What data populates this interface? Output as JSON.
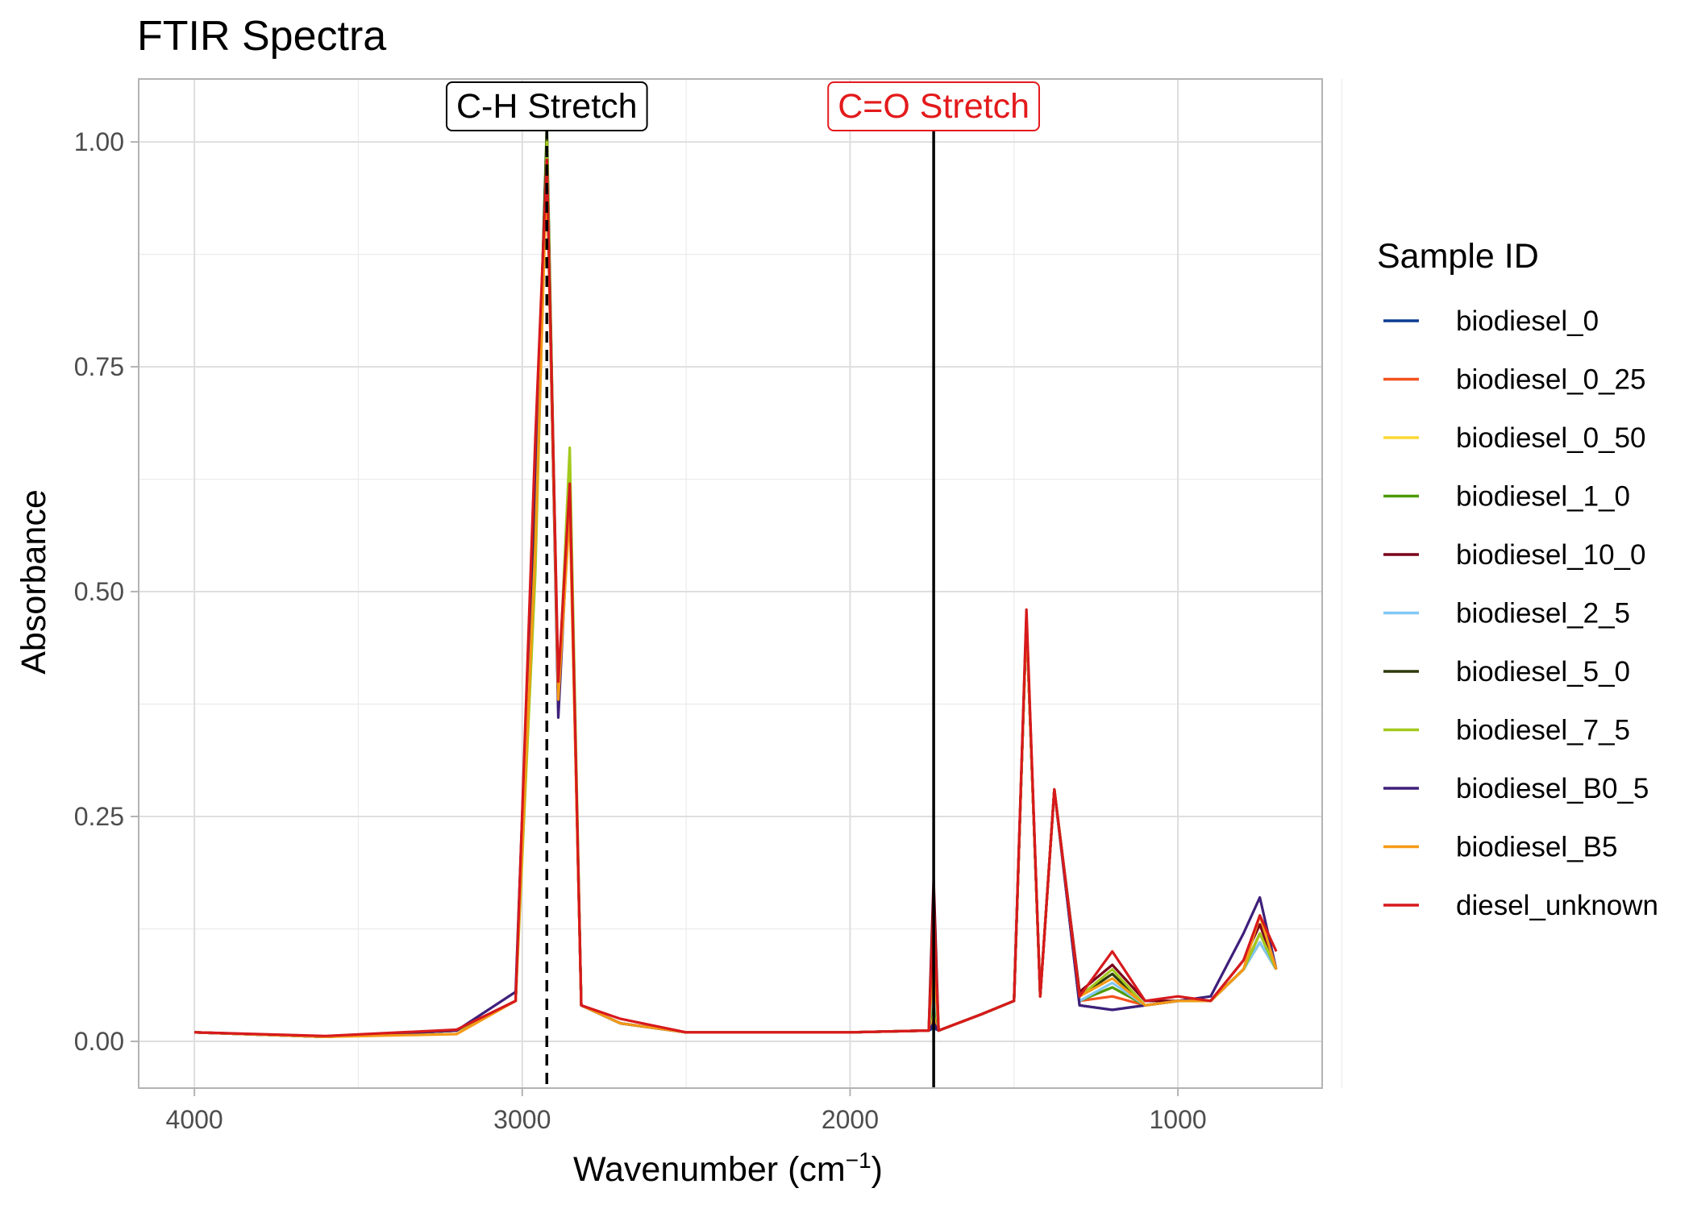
{
  "chart_data": {
    "type": "line",
    "title": "FTIR Spectra",
    "xlabel_base": "Wavenumber (cm",
    "xlabel_sup": "−1",
    "xlabel_end": ")",
    "ylabel": "Absorbance",
    "xlim": [
      4170,
      560
    ],
    "ylim": [
      -0.052,
      1.07
    ],
    "x_reversed": true,
    "x_ticks": [
      4000,
      3000,
      2000,
      1000
    ],
    "x_tick_labels": [
      "4000",
      "3000",
      "2000",
      "1000"
    ],
    "y_ticks": [
      0,
      0.25,
      0.5,
      0.75,
      1.0
    ],
    "y_tick_labels": [
      "0.00",
      "0.25",
      "0.50",
      "0.75",
      "1.00"
    ],
    "grid": true,
    "legend_position": "right",
    "legend_title": "Sample ID",
    "annotations": [
      {
        "label": "C-H Stretch",
        "x": 2925,
        "linetype": "dashed",
        "color": "#000000"
      },
      {
        "label": "C=O Stretch",
        "x": 1745,
        "linetype": "solid",
        "color": "#000000",
        "text_color": "#e31a1c"
      }
    ],
    "series": [
      {
        "name": "biodiesel_0",
        "color": "#0b3d91",
        "x": [
          4000,
          3600,
          3200,
          3020,
          2960,
          2925,
          2890,
          2855,
          2820,
          2700,
          2500,
          2000,
          1760,
          1745,
          1730,
          1600,
          1500,
          1462,
          1420,
          1377,
          1300,
          1200,
          1100,
          1000,
          900,
          800,
          750,
          700
        ],
        "y": [
          0.01,
          0.005,
          0.012,
          0.045,
          0.63,
          1.0,
          0.37,
          0.61,
          0.04,
          0.02,
          0.01,
          0.01,
          0.012,
          0.015,
          0.012,
          0.03,
          0.045,
          0.47,
          0.05,
          0.28,
          0.04,
          0.035,
          0.04,
          0.045,
          0.045,
          0.08,
          0.11,
          0.08
        ]
      },
      {
        "name": "biodiesel_0_25",
        "color": "#f4511e",
        "x": [
          4000,
          3600,
          3200,
          3020,
          2960,
          2925,
          2890,
          2855,
          2820,
          2700,
          2500,
          2000,
          1760,
          1745,
          1730,
          1600,
          1500,
          1462,
          1420,
          1377,
          1300,
          1200,
          1100,
          1000,
          900,
          800,
          750,
          700
        ],
        "y": [
          0.01,
          0.005,
          0.012,
          0.045,
          0.64,
          0.99,
          0.38,
          0.61,
          0.04,
          0.02,
          0.01,
          0.01,
          0.012,
          0.03,
          0.012,
          0.03,
          0.045,
          0.47,
          0.05,
          0.28,
          0.045,
          0.05,
          0.04,
          0.045,
          0.045,
          0.08,
          0.11,
          0.08
        ]
      },
      {
        "name": "biodiesel_0_50",
        "color": "#fdd835",
        "x": [
          4000,
          3600,
          3200,
          3020,
          2960,
          2925,
          2890,
          2855,
          2820,
          2700,
          2500,
          2000,
          1760,
          1745,
          1730,
          1600,
          1500,
          1462,
          1420,
          1377,
          1300,
          1200,
          1100,
          1000,
          900,
          800,
          750,
          700
        ],
        "y": [
          0.01,
          0.005,
          0.012,
          0.045,
          0.62,
          1.0,
          0.38,
          0.62,
          0.04,
          0.02,
          0.01,
          0.01,
          0.012,
          0.04,
          0.012,
          0.03,
          0.045,
          0.47,
          0.05,
          0.28,
          0.045,
          0.06,
          0.04,
          0.045,
          0.045,
          0.08,
          0.11,
          0.08
        ]
      },
      {
        "name": "biodiesel_1_0",
        "color": "#4e9a06",
        "x": [
          4000,
          3600,
          3200,
          3020,
          2960,
          2925,
          2890,
          2855,
          2820,
          2700,
          2500,
          2000,
          1760,
          1745,
          1730,
          1600,
          1500,
          1462,
          1420,
          1377,
          1300,
          1200,
          1100,
          1000,
          900,
          800,
          750,
          700
        ],
        "y": [
          0.01,
          0.005,
          0.012,
          0.045,
          0.6,
          1.02,
          0.38,
          0.63,
          0.04,
          0.02,
          0.01,
          0.01,
          0.012,
          0.05,
          0.012,
          0.03,
          0.045,
          0.47,
          0.05,
          0.28,
          0.045,
          0.06,
          0.04,
          0.045,
          0.045,
          0.08,
          0.11,
          0.08
        ]
      },
      {
        "name": "biodiesel_10_0",
        "color": "#7a0019",
        "x": [
          4000,
          3600,
          3200,
          3020,
          2960,
          2925,
          2890,
          2855,
          2820,
          2700,
          2500,
          2000,
          1760,
          1745,
          1730,
          1600,
          1500,
          1462,
          1420,
          1377,
          1300,
          1200,
          1100,
          1000,
          900,
          800,
          750,
          700
        ],
        "y": [
          0.01,
          0.005,
          0.012,
          0.045,
          0.65,
          0.97,
          0.38,
          0.61,
          0.04,
          0.02,
          0.01,
          0.01,
          0.012,
          0.18,
          0.012,
          0.03,
          0.045,
          0.47,
          0.05,
          0.28,
          0.055,
          0.085,
          0.045,
          0.045,
          0.045,
          0.09,
          0.13,
          0.08
        ]
      },
      {
        "name": "biodiesel_2_5",
        "color": "#81c7f5",
        "x": [
          4000,
          3600,
          3200,
          3020,
          2960,
          2925,
          2890,
          2855,
          2820,
          2700,
          2500,
          2000,
          1760,
          1745,
          1730,
          1600,
          1500,
          1462,
          1420,
          1377,
          1300,
          1200,
          1100,
          1000,
          900,
          800,
          750,
          700
        ],
        "y": [
          0.01,
          0.005,
          0.012,
          0.045,
          0.62,
          0.99,
          0.38,
          0.61,
          0.04,
          0.02,
          0.01,
          0.01,
          0.012,
          0.07,
          0.012,
          0.03,
          0.045,
          0.47,
          0.05,
          0.28,
          0.045,
          0.065,
          0.04,
          0.045,
          0.045,
          0.08,
          0.11,
          0.08
        ]
      },
      {
        "name": "biodiesel_5_0",
        "color": "#2d3b0b",
        "x": [
          4000,
          3600,
          3200,
          3020,
          2960,
          2925,
          2890,
          2855,
          2820,
          2700,
          2500,
          2000,
          1760,
          1745,
          1730,
          1600,
          1500,
          1462,
          1420,
          1377,
          1300,
          1200,
          1100,
          1000,
          900,
          800,
          750,
          700
        ],
        "y": [
          0.01,
          0.005,
          0.012,
          0.045,
          0.61,
          1.01,
          0.37,
          0.62,
          0.04,
          0.02,
          0.01,
          0.01,
          0.012,
          0.1,
          0.012,
          0.03,
          0.045,
          0.47,
          0.05,
          0.28,
          0.05,
          0.075,
          0.04,
          0.045,
          0.045,
          0.08,
          0.12,
          0.08
        ]
      },
      {
        "name": "biodiesel_7_5",
        "color": "#a3c91e",
        "x": [
          4000,
          3600,
          3200,
          3020,
          2960,
          2925,
          2890,
          2855,
          2820,
          2700,
          2500,
          2000,
          1760,
          1745,
          1730,
          1600,
          1500,
          1462,
          1420,
          1377,
          1300,
          1200,
          1100,
          1000,
          900,
          800,
          750,
          700
        ],
        "y": [
          0.01,
          0.005,
          0.012,
          0.045,
          0.52,
          1.0,
          0.38,
          0.66,
          0.04,
          0.02,
          0.01,
          0.01,
          0.012,
          0.14,
          0.012,
          0.03,
          0.045,
          0.47,
          0.05,
          0.28,
          0.05,
          0.08,
          0.04,
          0.045,
          0.045,
          0.08,
          0.12,
          0.08
        ]
      },
      {
        "name": "biodiesel_B0_5",
        "color": "#3f1f7a",
        "x": [
          4000,
          3600,
          3200,
          3020,
          2960,
          2925,
          2890,
          2855,
          2820,
          2700,
          2500,
          2000,
          1760,
          1745,
          1730,
          1600,
          1500,
          1462,
          1420,
          1377,
          1300,
          1200,
          1100,
          1000,
          900,
          800,
          750,
          700
        ],
        "y": [
          0.01,
          0.005,
          0.012,
          0.055,
          0.64,
          0.98,
          0.36,
          0.61,
          0.04,
          0.02,
          0.01,
          0.01,
          0.012,
          0.02,
          0.012,
          0.03,
          0.045,
          0.47,
          0.05,
          0.28,
          0.04,
          0.035,
          0.04,
          0.045,
          0.05,
          0.12,
          0.16,
          0.08
        ]
      },
      {
        "name": "biodiesel_B5",
        "color": "#f59a16",
        "x": [
          4000,
          3600,
          3200,
          3020,
          2960,
          2925,
          2890,
          2855,
          2820,
          2700,
          2500,
          2000,
          1760,
          1745,
          1730,
          1600,
          1500,
          1462,
          1420,
          1377,
          1300,
          1200,
          1100,
          1000,
          900,
          800,
          750,
          700
        ],
        "y": [
          0.01,
          0.005,
          0.008,
          0.045,
          0.55,
          0.97,
          0.38,
          0.59,
          0.04,
          0.02,
          0.01,
          0.01,
          0.012,
          0.09,
          0.012,
          0.03,
          0.045,
          0.47,
          0.05,
          0.28,
          0.05,
          0.07,
          0.04,
          0.045,
          0.045,
          0.08,
          0.14,
          0.08
        ]
      },
      {
        "name": "diesel_unknown",
        "color": "#d7191c",
        "x": [
          4000,
          3600,
          3200,
          3020,
          2960,
          2925,
          2890,
          2855,
          2820,
          2700,
          2500,
          2000,
          1760,
          1745,
          1730,
          1600,
          1500,
          1462,
          1420,
          1377,
          1300,
          1200,
          1100,
          1000,
          900,
          800,
          750,
          700
        ],
        "y": [
          0.01,
          0.006,
          0.013,
          0.045,
          0.67,
          0.98,
          0.4,
          0.62,
          0.04,
          0.025,
          0.01,
          0.01,
          0.012,
          0.15,
          0.012,
          0.03,
          0.045,
          0.48,
          0.05,
          0.28,
          0.05,
          0.1,
          0.045,
          0.05,
          0.045,
          0.09,
          0.14,
          0.1
        ]
      }
    ]
  }
}
